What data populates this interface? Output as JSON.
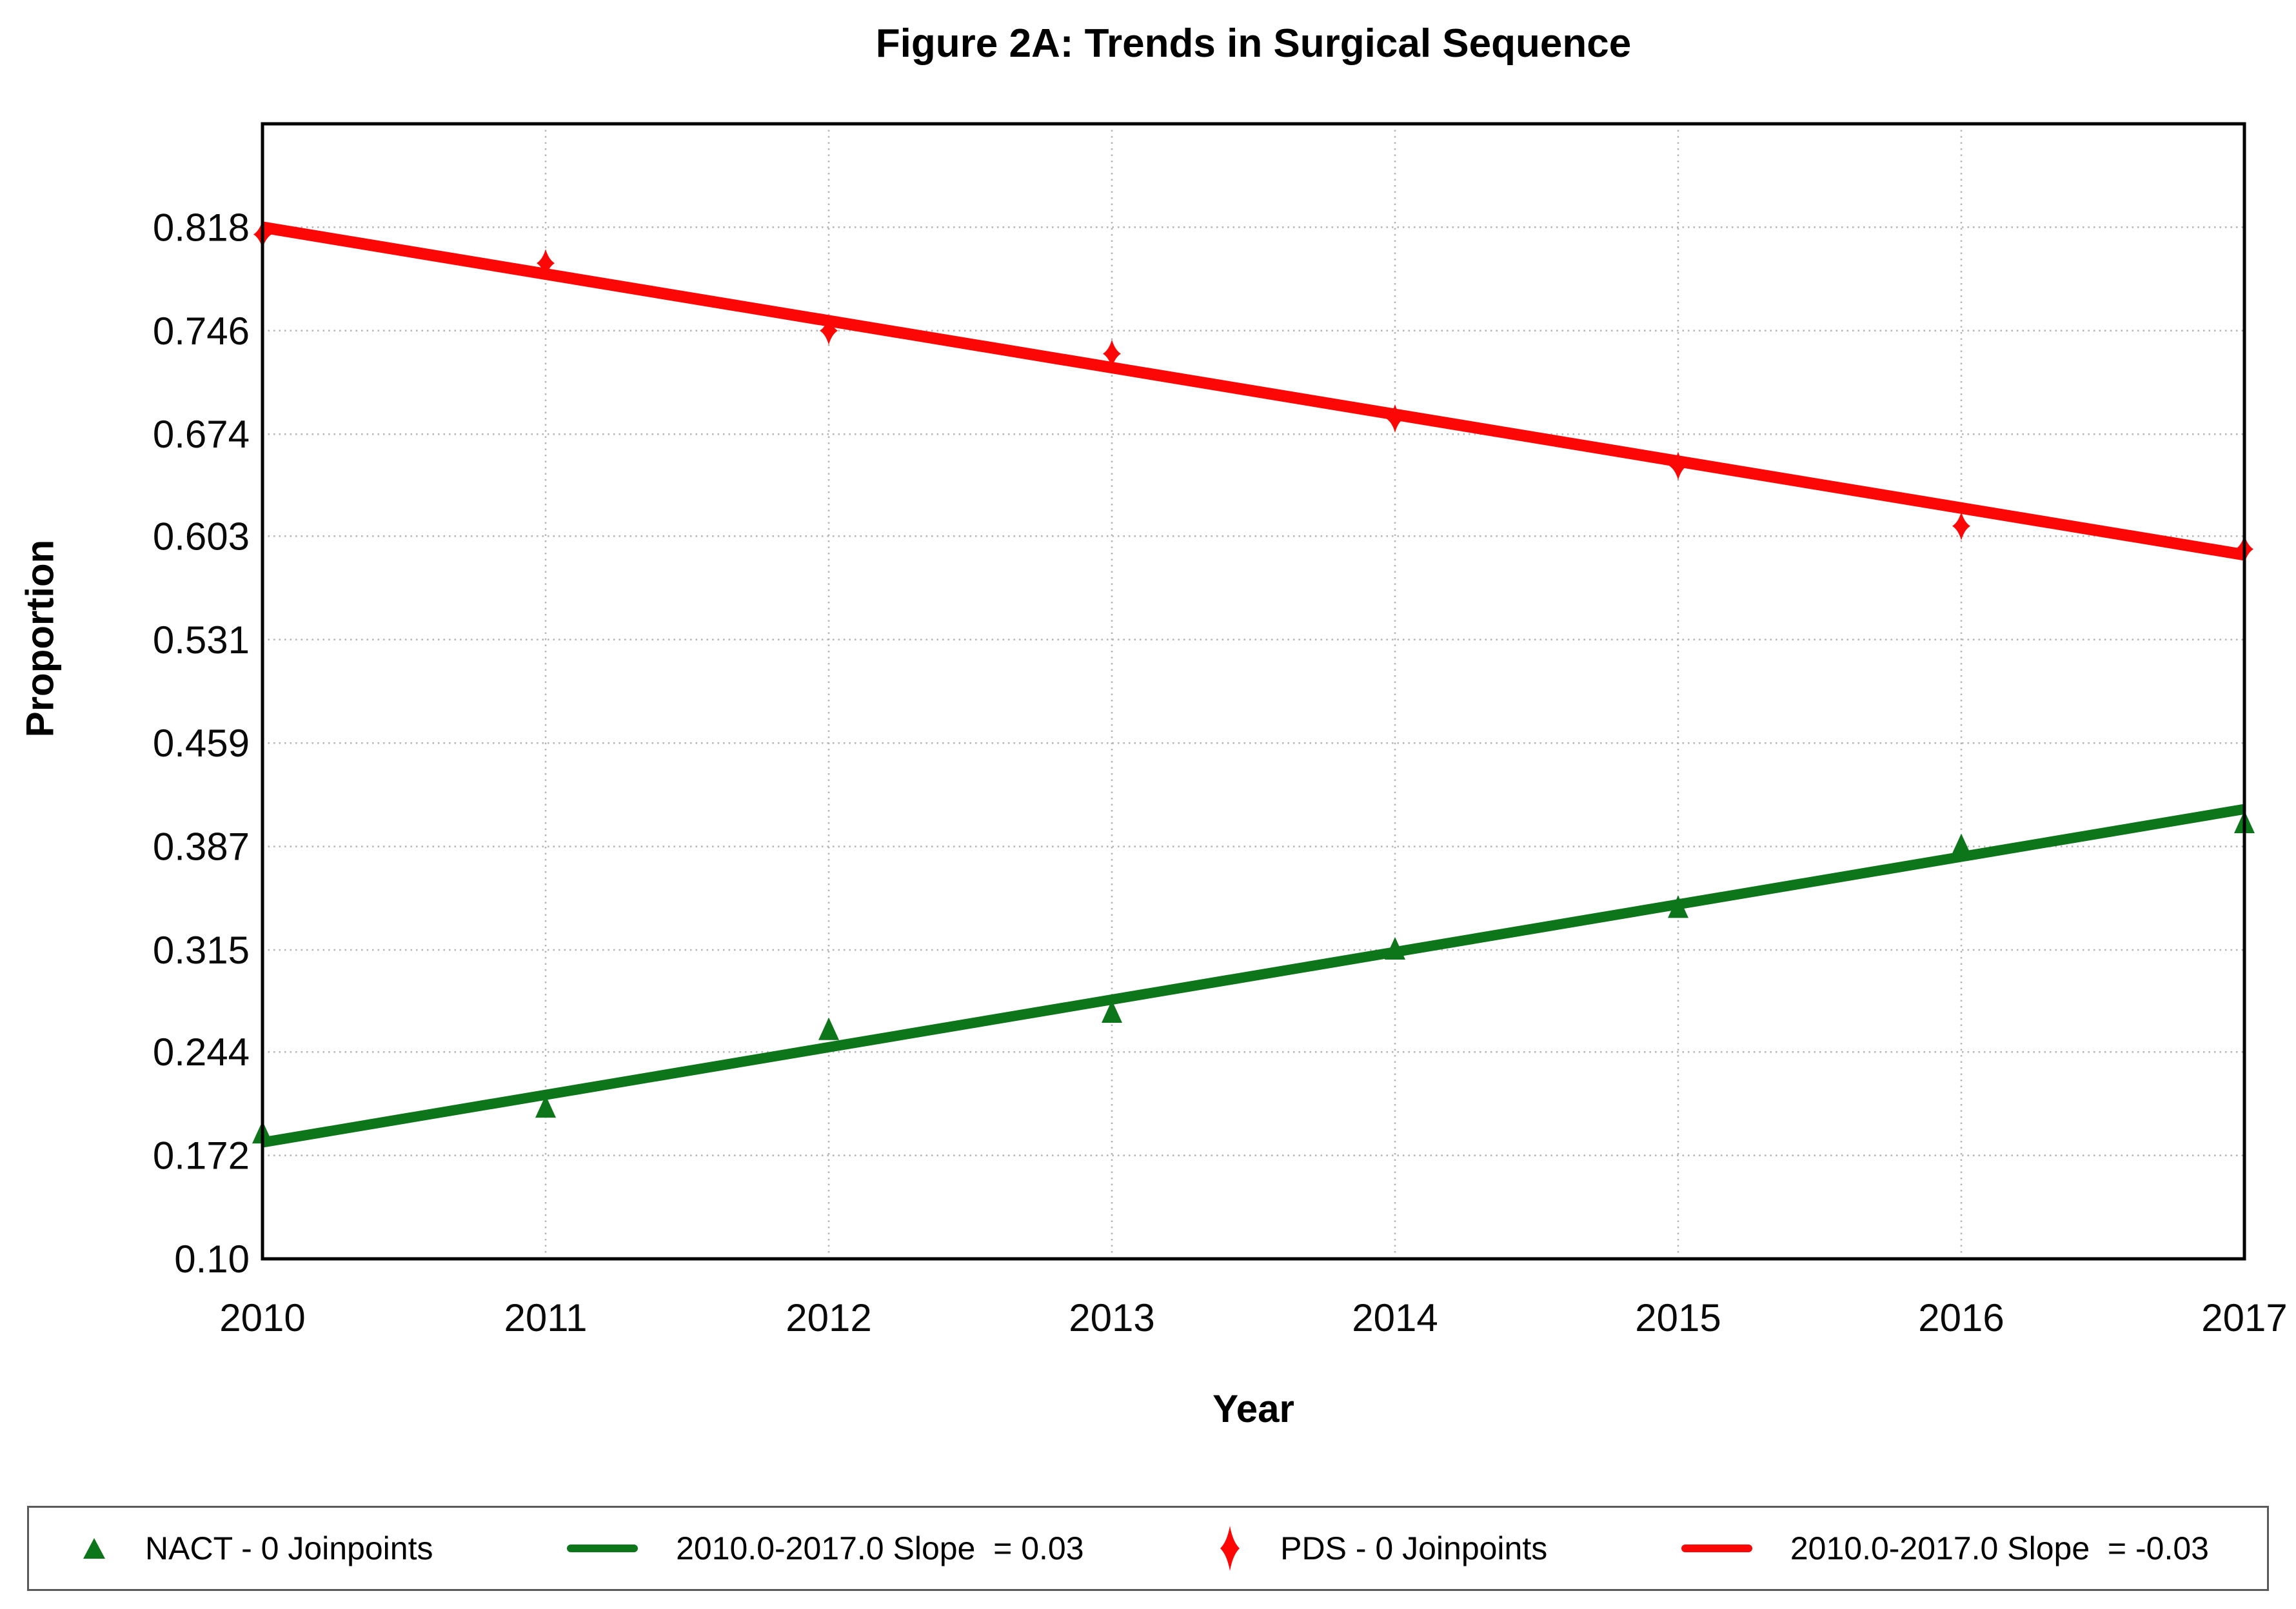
{
  "title": "Figure 2A: Trends in Surgical Sequence",
  "axes": {
    "x_label": "Year",
    "y_label": "Proportion"
  },
  "chart_data": {
    "type": "scatter",
    "title": "Figure 2A: Trends in Surgical Sequence",
    "xlabel": "Year",
    "ylabel": "Proportion",
    "x": [
      2010,
      2011,
      2012,
      2013,
      2014,
      2015,
      2016,
      2017
    ],
    "x_ticks": [
      {
        "value": 2010,
        "label": "2010"
      },
      {
        "value": 2011,
        "label": "2011"
      },
      {
        "value": 2012,
        "label": "2012"
      },
      {
        "value": 2013,
        "label": "2013"
      },
      {
        "value": 2014,
        "label": "2014"
      },
      {
        "value": 2015,
        "label": "2015"
      },
      {
        "value": 2016,
        "label": "2016"
      },
      {
        "value": 2017,
        "label": "2017"
      }
    ],
    "y_ticks": [
      {
        "value": 0.1,
        "label": "0.10"
      },
      {
        "value": 0.172,
        "label": "0.172"
      },
      {
        "value": 0.244,
        "label": "0.244"
      },
      {
        "value": 0.315,
        "label": "0.315"
      },
      {
        "value": 0.387,
        "label": "0.387"
      },
      {
        "value": 0.459,
        "label": "0.459"
      },
      {
        "value": 0.531,
        "label": "0.531"
      },
      {
        "value": 0.603,
        "label": "0.603"
      },
      {
        "value": 0.674,
        "label": "0.674"
      },
      {
        "value": 0.746,
        "label": "0.746"
      },
      {
        "value": 0.818,
        "label": "0.818"
      }
    ],
    "xlim": [
      2010,
      2017
    ],
    "ylim": [
      0.1,
      0.89
    ],
    "grid": true,
    "legend_position": "bottom",
    "series": [
      {
        "name": "NACT",
        "marker": "triangle",
        "color": "#0D751A",
        "values": [
          0.187,
          0.205,
          0.259,
          0.271,
          0.315,
          0.344,
          0.387,
          0.403
        ]
      },
      {
        "name": "PDS",
        "marker": "diamond",
        "color": "#FC0606",
        "values": [
          0.813,
          0.793,
          0.746,
          0.73,
          0.685,
          0.652,
          0.61,
          0.594
        ]
      }
    ],
    "trend_lines": [
      {
        "name": "nact-trend-line",
        "color": "#0D751A",
        "width": 16,
        "x_start": 2010,
        "y_start": 0.181,
        "x_end": 2017,
        "y_end": 0.413,
        "slope": 0.03
      },
      {
        "name": "pds-trend-line",
        "color": "#FC0606",
        "width": 18,
        "x_start": 2010,
        "y_start": 0.818,
        "x_end": 2017,
        "y_end": 0.59,
        "slope": -0.03
      }
    ],
    "colors": {
      "grid": "#b3b3b3",
      "frame": "#000000",
      "nact": "#0D751A",
      "pds": "#FC0606"
    }
  },
  "legend": {
    "items": [
      {
        "marker": "triangle",
        "color": "#0D751A",
        "label": "NACT - 0 Joinpoints"
      },
      {
        "marker": "line",
        "color": "#0D751A",
        "label": "2010.0-2017.0 Slope  = 0.03"
      },
      {
        "marker": "diamond",
        "color": "#FC0606",
        "label": "PDS - 0 Joinpoints"
      },
      {
        "marker": "line",
        "color": "#FC0606",
        "label": "2010.0-2017.0 Slope  = -0.03"
      }
    ]
  }
}
